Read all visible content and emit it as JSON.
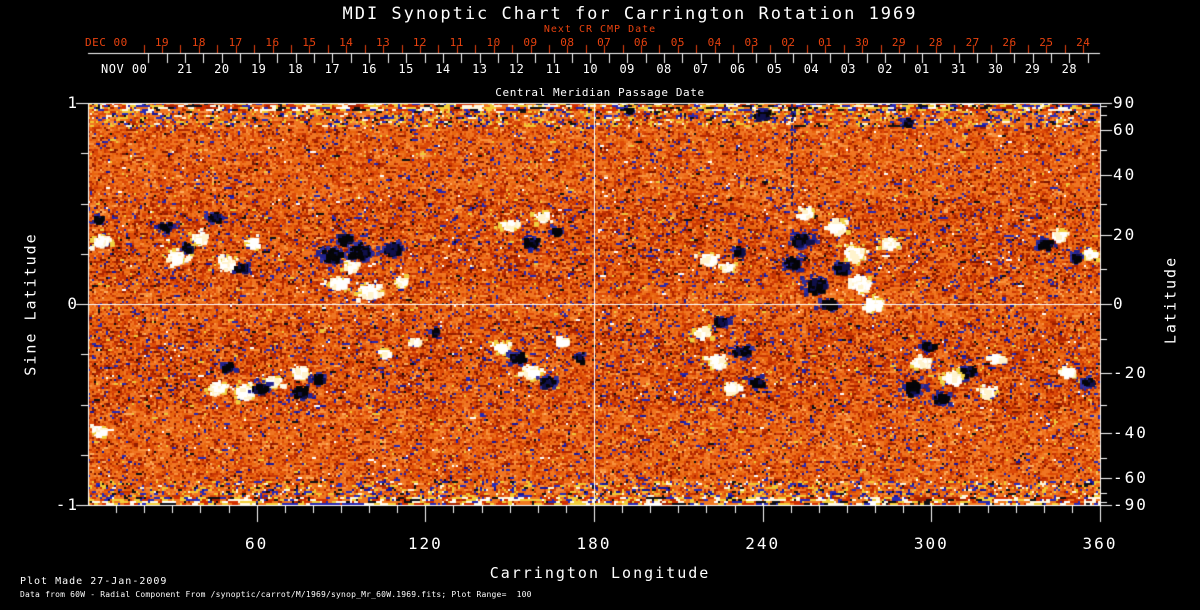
{
  "title": "MDI Synoptic Chart for Carrington Rotation 1969",
  "colors": {
    "background": "#000000",
    "foreground": "#ffffff",
    "red_axis": "#e8420f"
  },
  "top_axes": {
    "next_cr_label": "Next CR CMP Date",
    "next_cr_month": "DEC 00",
    "next_cr_days": [
      "19",
      "18",
      "17",
      "16",
      "15",
      "14",
      "13",
      "12",
      "11",
      "10",
      "09",
      "08",
      "07",
      "06",
      "05",
      "04",
      "03",
      "02",
      "01",
      "30",
      "29",
      "28",
      "27",
      "26",
      "25",
      "24"
    ],
    "cmp_label": "Central Meridian Passage Date",
    "cmp_month": "NOV 00",
    "cmp_days": [
      "21",
      "20",
      "19",
      "18",
      "17",
      "16",
      "15",
      "14",
      "13",
      "12",
      "11",
      "10",
      "09",
      "08",
      "07",
      "06",
      "05",
      "04",
      "03",
      "02",
      "01",
      "31",
      "30",
      "29",
      "28"
    ]
  },
  "left_axis": {
    "label": "Sine Latitude",
    "major_ticks": [
      1,
      0,
      -1
    ],
    "minor_ticks": [
      0.75,
      0.5,
      0.25,
      -0.25,
      -0.5,
      -0.75
    ]
  },
  "right_axis": {
    "label": "Latitude",
    "major_ticks": [
      90,
      60,
      40,
      20,
      0,
      -20,
      -40,
      -60,
      -90
    ],
    "minor_ticks": [
      80,
      70,
      50,
      30,
      10,
      -10,
      -30,
      -50,
      -70,
      -80
    ]
  },
  "bottom_axis": {
    "label": "Carrington Longitude",
    "major_ticks": [
      60,
      120,
      180,
      240,
      300,
      360
    ],
    "minor_step": 10
  },
  "footer": {
    "line1": "Plot Made 27-Jan-2009",
    "line2": "Data from 60W - Radial Component From /synoptic/carrot/M/1969/synop_Mr_60W.1969.fits; Plot Range=  100"
  },
  "chart_data": {
    "type": "heatmap",
    "subtype": "solar_synoptic_magnetogram",
    "instrument": "MDI",
    "carrington_rotation": 1969,
    "title": "MDI Synoptic Chart for Carrington Rotation 1969",
    "xlabel": "Carrington Longitude",
    "ylabel_left": "Sine Latitude",
    "ylabel_right": "Latitude",
    "x_range": [
      0,
      360
    ],
    "sine_latitude_range": [
      -1,
      1
    ],
    "plot_range_gauss": 100,
    "crosshair": {
      "longitude": 180,
      "sine_latitude": 0
    },
    "palette": {
      "quiet_sun": [
        "#f07522",
        "#e8650f",
        "#dd4b08",
        "#c93704",
        "#b02600",
        "#f8913c",
        "#951d00",
        "#7a1400",
        "#fcae60",
        "#eec83c"
      ],
      "negative_speckle": [
        "#2626b0",
        "#16169a",
        "#0d0d12"
      ],
      "pole_speckle": [
        "#f2cf3a",
        "#fff8e2",
        "#d23000",
        "#2828b4",
        "#0e0e14",
        "#f07820",
        "#a82200",
        "#ffffff"
      ],
      "positive_field": [
        "#ffffff",
        "#fff3cc",
        "#f0d040"
      ],
      "negative_field": [
        "#050508",
        "#10104a",
        "#22228f"
      ]
    },
    "data_gap_line": {
      "longitude": 250,
      "sine_lat_from": 1.0,
      "sine_lat_to": 0.5
    },
    "active_regions": [
      {
        "lon": 4.3,
        "sin_lat": 0.32,
        "r": 6,
        "pol": 1
      },
      {
        "lon": 3.2,
        "sin_lat": 0.43,
        "r": 4,
        "pol": -1
      },
      {
        "lon": 3.5,
        "sin_lat": -0.62,
        "r": 5,
        "pol": 1
      },
      {
        "lon": 31,
        "sin_lat": 0.24,
        "r": 7,
        "pol": 1
      },
      {
        "lon": 39,
        "sin_lat": 0.34,
        "r": 6,
        "pol": 1
      },
      {
        "lon": 49,
        "sin_lat": 0.21,
        "r": 7,
        "pol": 1
      },
      {
        "lon": 58,
        "sin_lat": 0.31,
        "r": 5,
        "pol": 1
      },
      {
        "lon": 27,
        "sin_lat": 0.39,
        "r": 5,
        "pol": -1
      },
      {
        "lon": 44,
        "sin_lat": 0.44,
        "r": 5,
        "pol": -1
      },
      {
        "lon": 54,
        "sin_lat": 0.19,
        "r": 5,
        "pol": -1
      },
      {
        "lon": 34.5,
        "sin_lat": 0.29,
        "r": 4,
        "pol": -1
      },
      {
        "lon": 86,
        "sin_lat": 0.25,
        "r": 8,
        "pol": -1
      },
      {
        "lon": 96,
        "sin_lat": 0.27,
        "r": 9,
        "pol": -1
      },
      {
        "lon": 108,
        "sin_lat": 0.28,
        "r": 7,
        "pol": -1
      },
      {
        "lon": 91,
        "sin_lat": 0.33,
        "r": 6,
        "pol": -1
      },
      {
        "lon": 88,
        "sin_lat": 0.11,
        "r": 7,
        "pol": 1
      },
      {
        "lon": 100,
        "sin_lat": 0.07,
        "r": 8,
        "pol": 1
      },
      {
        "lon": 93,
        "sin_lat": 0.19,
        "r": 5,
        "pol": 1
      },
      {
        "lon": 111,
        "sin_lat": 0.12,
        "r": 5,
        "pol": 1
      },
      {
        "lon": 149,
        "sin_lat": 0.4,
        "r": 6,
        "pol": 1
      },
      {
        "lon": 161,
        "sin_lat": 0.44,
        "r": 5,
        "pol": 1
      },
      {
        "lon": 157,
        "sin_lat": 0.31,
        "r": 6,
        "pol": -1
      },
      {
        "lon": 166,
        "sin_lat": 0.37,
        "r": 4,
        "pol": -1
      },
      {
        "lon": 220,
        "sin_lat": 0.23,
        "r": 6,
        "pol": 1
      },
      {
        "lon": 227,
        "sin_lat": 0.19,
        "r": 5,
        "pol": 1
      },
      {
        "lon": 231,
        "sin_lat": 0.27,
        "r": 4,
        "pol": -1
      },
      {
        "lon": 253,
        "sin_lat": 0.33,
        "r": 8,
        "pol": -1
      },
      {
        "lon": 250,
        "sin_lat": 0.21,
        "r": 7,
        "pol": -1
      },
      {
        "lon": 258,
        "sin_lat": 0.1,
        "r": 8,
        "pol": -1
      },
      {
        "lon": 263,
        "sin_lat": 0.01,
        "r": 6,
        "pol": -1
      },
      {
        "lon": 267,
        "sin_lat": 0.19,
        "r": 6,
        "pol": -1
      },
      {
        "lon": 266,
        "sin_lat": 0.39,
        "r": 7,
        "pol": 1
      },
      {
        "lon": 272,
        "sin_lat": 0.26,
        "r": 8,
        "pol": 1
      },
      {
        "lon": 274,
        "sin_lat": 0.11,
        "r": 8,
        "pol": 1
      },
      {
        "lon": 279,
        "sin_lat": 0.005,
        "r": 7,
        "pol": 1
      },
      {
        "lon": 284,
        "sin_lat": 0.31,
        "r": 6,
        "pol": 1
      },
      {
        "lon": 255,
        "sin_lat": 0.46,
        "r": 5,
        "pol": 1
      },
      {
        "lon": 340,
        "sin_lat": 0.31,
        "r": 6,
        "pol": -1
      },
      {
        "lon": 351,
        "sin_lat": 0.24,
        "r": 5,
        "pol": -1
      },
      {
        "lon": 345,
        "sin_lat": 0.35,
        "r": 5,
        "pol": 1
      },
      {
        "lon": 356,
        "sin_lat": 0.26,
        "r": 5,
        "pol": 1
      },
      {
        "lon": 239,
        "sin_lat": 0.95,
        "r": 5,
        "pol": -1
      },
      {
        "lon": 291,
        "sin_lat": 0.91,
        "r": 4,
        "pol": -1
      },
      {
        "lon": 192,
        "sin_lat": 0.97,
        "r": 3,
        "pol": -1
      },
      {
        "lon": 45,
        "sin_lat": -0.41,
        "r": 7,
        "pol": 1
      },
      {
        "lon": 55,
        "sin_lat": -0.43,
        "r": 8,
        "pol": 1
      },
      {
        "lon": 65,
        "sin_lat": -0.38,
        "r": 6,
        "pol": 1
      },
      {
        "lon": 75,
        "sin_lat": -0.33,
        "r": 6,
        "pol": 1
      },
      {
        "lon": 49,
        "sin_lat": -0.31,
        "r": 5,
        "pol": -1
      },
      {
        "lon": 61,
        "sin_lat": -0.41,
        "r": 6,
        "pol": -1
      },
      {
        "lon": 75,
        "sin_lat": -0.43,
        "r": 6,
        "pol": -1
      },
      {
        "lon": 81,
        "sin_lat": -0.36,
        "r": 5,
        "pol": -1
      },
      {
        "lon": 147,
        "sin_lat": -0.21,
        "r": 6,
        "pol": 1
      },
      {
        "lon": 157,
        "sin_lat": -0.33,
        "r": 7,
        "pol": 1
      },
      {
        "lon": 168,
        "sin_lat": -0.18,
        "r": 5,
        "pol": 1
      },
      {
        "lon": 152,
        "sin_lat": -0.26,
        "r": 6,
        "pol": -1
      },
      {
        "lon": 163,
        "sin_lat": -0.38,
        "r": 6,
        "pol": -1
      },
      {
        "lon": 174,
        "sin_lat": -0.26,
        "r": 4,
        "pol": -1
      },
      {
        "lon": 218,
        "sin_lat": -0.13,
        "r": 6,
        "pol": 1
      },
      {
        "lon": 223,
        "sin_lat": -0.28,
        "r": 7,
        "pol": 1
      },
      {
        "lon": 229,
        "sin_lat": -0.41,
        "r": 6,
        "pol": 1
      },
      {
        "lon": 225,
        "sin_lat": -0.08,
        "r": 5,
        "pol": -1
      },
      {
        "lon": 232,
        "sin_lat": -0.23,
        "r": 6,
        "pol": -1
      },
      {
        "lon": 237,
        "sin_lat": -0.38,
        "r": 5,
        "pol": -1
      },
      {
        "lon": 293,
        "sin_lat": -0.41,
        "r": 7,
        "pol": -1
      },
      {
        "lon": 303,
        "sin_lat": -0.46,
        "r": 6,
        "pol": -1
      },
      {
        "lon": 312,
        "sin_lat": -0.33,
        "r": 6,
        "pol": -1
      },
      {
        "lon": 298,
        "sin_lat": -0.2,
        "r": 5,
        "pol": -1
      },
      {
        "lon": 296,
        "sin_lat": -0.28,
        "r": 6,
        "pol": 1
      },
      {
        "lon": 307,
        "sin_lat": -0.36,
        "r": 7,
        "pol": 1
      },
      {
        "lon": 319,
        "sin_lat": -0.43,
        "r": 6,
        "pol": 1
      },
      {
        "lon": 323,
        "sin_lat": -0.26,
        "r": 5,
        "pol": 1
      },
      {
        "lon": 348,
        "sin_lat": -0.33,
        "r": 5,
        "pol": 1
      },
      {
        "lon": 355,
        "sin_lat": -0.38,
        "r": 5,
        "pol": -1
      },
      {
        "lon": 105,
        "sin_lat": -0.24,
        "r": 4,
        "pol": 1
      },
      {
        "lon": 116,
        "sin_lat": -0.18,
        "r": 3,
        "pol": 1
      },
      {
        "lon": 123,
        "sin_lat": -0.13,
        "r": 3,
        "pol": -1
      }
    ]
  }
}
